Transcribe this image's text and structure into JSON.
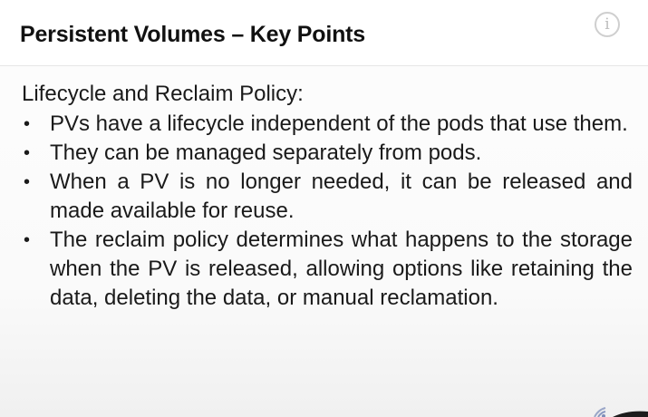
{
  "slide": {
    "title": "Persistent Volumes – Key Points",
    "subheading": "Lifecycle and Reclaim Policy:",
    "bullets": [
      "PVs have a lifecycle independent of the pods that use them.",
      "They can be managed separately from pods.",
      "When a PV is no longer needed, it can be released and made available for reuse.",
      "The reclaim policy determines what happens to the storage when the PV is released, allowing options like retaining the data, deleting the data, or manual reclamation."
    ]
  },
  "icons": {
    "info": "info-icon",
    "bullet": "bullet-dot",
    "corner": "wifi-icon"
  },
  "colors": {
    "background": "#fafafa",
    "text": "#1a1a1a",
    "header_border": "#e6e6e6",
    "info_icon": "#cfcfcf"
  }
}
